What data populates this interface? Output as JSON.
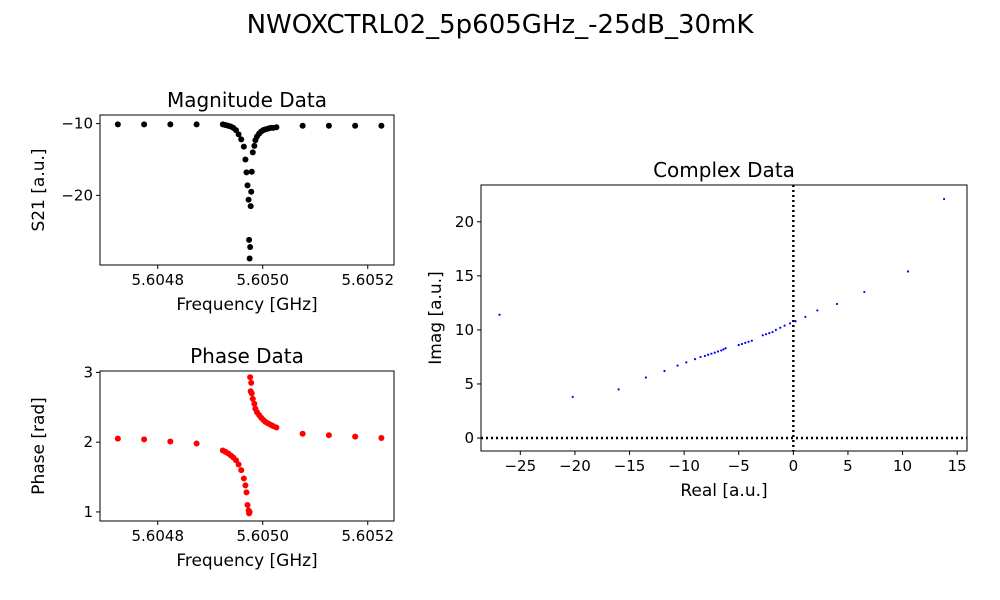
{
  "figure": {
    "title": "NWOXCTRL02_5p605GHz_-25dB_30mK"
  },
  "chart_data": [
    {
      "type": "scatter",
      "title": "Magnitude Data",
      "xlabel": "Frequency [GHz]",
      "ylabel": "S21 [a.u.]",
      "xlim": [
        5.60469,
        5.60525
      ],
      "ylim": [
        -29.7,
        -8.8
      ],
      "xticks": [
        5.6048,
        5.605,
        5.6052
      ],
      "xtick_labels": [
        "5.6048",
        "5.6050",
        "5.6052"
      ],
      "yticks": [
        -10,
        -20
      ],
      "ytick_labels": [
        "−10",
        "−20"
      ],
      "grid": false,
      "color": "#000000",
      "x": [
        5.604724,
        5.604774,
        5.604824,
        5.604874,
        5.604924,
        5.604929,
        5.604934,
        5.604939,
        5.604944,
        5.604949,
        5.604954,
        5.604959,
        5.604964,
        5.604967,
        5.604969,
        5.604971,
        5.604973,
        5.604974,
        5.604975,
        5.604976,
        5.604977,
        5.604978,
        5.604979,
        5.604981,
        5.604984,
        5.604986,
        5.604989,
        5.604993,
        5.604997,
        5.605001,
        5.605005,
        5.60501,
        5.605015,
        5.60502,
        5.605026,
        5.605076,
        5.605126,
        5.605176,
        5.605226
      ],
      "y": [
        -10.1,
        -10.1,
        -10.1,
        -10.1,
        -10.1,
        -10.2,
        -10.3,
        -10.4,
        -10.6,
        -10.9,
        -11.5,
        -12.2,
        -13.2,
        -15.0,
        -16.8,
        -18.6,
        -20.6,
        -26.2,
        -28.8,
        -27.2,
        -21.5,
        -19.5,
        -16.7,
        -14.0,
        -13.1,
        -12.3,
        -11.8,
        -11.4,
        -11.1,
        -10.9,
        -10.8,
        -10.7,
        -10.6,
        -10.6,
        -10.5,
        -10.3,
        -10.3,
        -10.3,
        -10.3
      ]
    },
    {
      "type": "scatter",
      "title": "Phase Data",
      "xlabel": "Frequency [GHz]",
      "ylabel": "Phase [rad]",
      "xlim": [
        5.60469,
        5.60525
      ],
      "ylim": [
        0.87,
        3.02
      ],
      "xticks": [
        5.6048,
        5.605,
        5.6052
      ],
      "xtick_labels": [
        "5.6048",
        "5.6050",
        "5.6052"
      ],
      "yticks": [
        1,
        2,
        3
      ],
      "ytick_labels": [
        "1",
        "2",
        "3"
      ],
      "grid": false,
      "color": "#ff0000",
      "x": [
        5.604724,
        5.604774,
        5.604824,
        5.604874,
        5.604924,
        5.604929,
        5.604934,
        5.604939,
        5.604944,
        5.604949,
        5.604954,
        5.604959,
        5.604964,
        5.604967,
        5.604969,
        5.604971,
        5.604973,
        5.604974,
        5.604975,
        5.604976,
        5.604977,
        5.604978,
        5.604979,
        5.604981,
        5.604984,
        5.604986,
        5.604989,
        5.604993,
        5.604997,
        5.605001,
        5.605005,
        5.60501,
        5.605015,
        5.60502,
        5.605026,
        5.605076,
        5.605126,
        5.605176,
        5.605226
      ],
      "y": [
        2.05,
        2.04,
        2.01,
        1.98,
        1.88,
        1.86,
        1.84,
        1.81,
        1.78,
        1.74,
        1.68,
        1.6,
        1.48,
        1.38,
        1.28,
        1.1,
        1.02,
        0.98,
        1.0,
        2.93,
        2.73,
        2.85,
        2.7,
        2.62,
        2.55,
        2.48,
        2.43,
        2.39,
        2.35,
        2.32,
        2.29,
        2.27,
        2.25,
        2.23,
        2.21,
        2.12,
        2.1,
        2.08,
        2.06
      ]
    },
    {
      "type": "scatter",
      "title": "Complex Data",
      "xlabel": "Real [a.u.]",
      "ylabel": "Imag [a.u.]",
      "xlim": [
        -28.6,
        15.9
      ],
      "ylim": [
        -1.2,
        23.4
      ],
      "xticks": [
        -25,
        -20,
        -15,
        -10,
        -5,
        0,
        5,
        10,
        15
      ],
      "xtick_labels": [
        "−25",
        "−20",
        "−15",
        "−10",
        "−5",
        "0",
        "5",
        "10",
        "15"
      ],
      "yticks": [
        0,
        5,
        10,
        15,
        20
      ],
      "ytick_labels": [
        "0",
        "5",
        "10",
        "15",
        "20"
      ],
      "grid": false,
      "color": "#0000ff",
      "reference_lines": {
        "x": 0,
        "y": 0,
        "style": "dotted"
      },
      "x": [
        -26.9,
        -20.2,
        -16.0,
        -13.5,
        -11.8,
        -10.6,
        -9.8,
        -9.0,
        -8.5,
        -8.1,
        -7.8,
        -7.5,
        -7.2,
        -6.9,
        -6.6,
        -6.4,
        -6.2,
        -5.0,
        -4.7,
        -4.4,
        -4.1,
        -3.8,
        -2.8,
        -2.5,
        -2.2,
        -1.9,
        -1.6,
        -1.2,
        -0.8,
        -0.3,
        0.2,
        1.1,
        2.2,
        4.0,
        6.5,
        10.5,
        13.8
      ],
      "y": [
        11.4,
        3.8,
        4.5,
        5.6,
        6.2,
        6.7,
        7.0,
        7.3,
        7.5,
        7.6,
        7.7,
        7.8,
        7.9,
        8.0,
        8.1,
        8.2,
        8.3,
        8.6,
        8.7,
        8.8,
        8.9,
        9.0,
        9.5,
        9.6,
        9.7,
        9.8,
        10.0,
        10.2,
        10.4,
        10.6,
        10.8,
        11.2,
        11.8,
        12.4,
        13.5,
        15.4,
        22.1
      ]
    }
  ]
}
